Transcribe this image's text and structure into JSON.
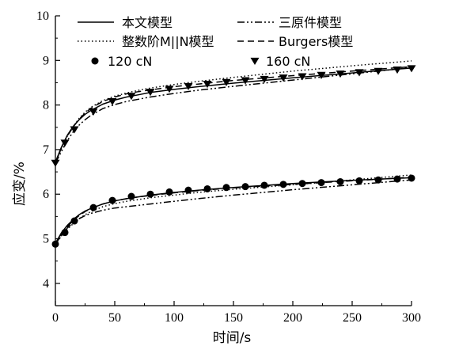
{
  "chart_data": {
    "type": "line",
    "xlabel": "时间/s",
    "ylabel": "应变/%",
    "xlim": [
      0,
      300
    ],
    "ylim": [
      3.5,
      10
    ],
    "xticks": [
      0,
      50,
      100,
      150,
      200,
      250,
      300
    ],
    "yticks": [
      4,
      5,
      6,
      7,
      8,
      9,
      10
    ],
    "grid": false,
    "legend_position": "top",
    "legend": {
      "lines": [
        {
          "label": "本文模型",
          "style": "solid"
        },
        {
          "label": "三原件模型",
          "style": "dashdotdot"
        },
        {
          "label": "整数阶M||N模型",
          "style": "dotted"
        },
        {
          "label": "Burgers模型",
          "style": "dashed"
        }
      ],
      "markers": [
        {
          "label": "120 cN",
          "marker": "circle"
        },
        {
          "label": "160 cN",
          "marker": "triangle-down"
        }
      ]
    },
    "groups": [
      {
        "name": "120 cN",
        "marker": "circle",
        "points": {
          "x": [
            0,
            8,
            16,
            32,
            48,
            64,
            80,
            96,
            112,
            128,
            144,
            160,
            176,
            192,
            208,
            224,
            240,
            256,
            272,
            288,
            300
          ],
          "y": [
            4.88,
            5.14,
            5.4,
            5.7,
            5.86,
            5.95,
            6.0,
            6.05,
            6.09,
            6.12,
            6.15,
            6.17,
            6.2,
            6.22,
            6.24,
            6.26,
            6.28,
            6.3,
            6.32,
            6.34,
            6.36
          ]
        },
        "series": [
          {
            "model": "本文模型",
            "x": [
              0,
              5,
              10,
              15,
              20,
              25,
              30,
              40,
              50,
              60,
              70,
              80,
              100,
              120,
              150,
              200,
              250,
              300
            ],
            "y": [
              4.9,
              5.13,
              5.3,
              5.43,
              5.54,
              5.62,
              5.68,
              5.78,
              5.85,
              5.9,
              5.94,
              5.98,
              6.04,
              6.09,
              6.15,
              6.24,
              6.31,
              6.37
            ]
          },
          {
            "model": "三原件模型",
            "x": [
              0,
              5,
              10,
              15,
              20,
              25,
              30,
              40,
              50,
              60,
              70,
              80,
              100,
              120,
              150,
              200,
              250,
              300
            ],
            "y": [
              4.88,
              5.08,
              5.24,
              5.36,
              5.45,
              5.52,
              5.57,
              5.64,
              5.69,
              5.72,
              5.75,
              5.78,
              5.84,
              5.9,
              5.98,
              6.1,
              6.21,
              6.32
            ]
          },
          {
            "model": "整数阶M||N模型",
            "x": [
              0,
              5,
              10,
              15,
              20,
              25,
              30,
              40,
              50,
              60,
              70,
              80,
              100,
              120,
              150,
              200,
              250,
              300
            ],
            "y": [
              4.88,
              5.06,
              5.21,
              5.34,
              5.45,
              5.54,
              5.61,
              5.72,
              5.79,
              5.84,
              5.88,
              5.92,
              5.98,
              6.04,
              6.11,
              6.21,
              6.32,
              6.43
            ]
          },
          {
            "model": "Burgers模型",
            "x": [
              0,
              5,
              10,
              15,
              20,
              25,
              30,
              40,
              50,
              60,
              70,
              80,
              100,
              120,
              150,
              200,
              250,
              300
            ],
            "y": [
              4.88,
              5.1,
              5.27,
              5.41,
              5.52,
              5.61,
              5.68,
              5.78,
              5.85,
              5.9,
              5.94,
              5.97,
              6.03,
              6.08,
              6.14,
              6.22,
              6.3,
              6.38
            ]
          }
        ]
      },
      {
        "name": "160 cN",
        "marker": "triangle-down",
        "points": {
          "x": [
            0,
            8,
            16,
            32,
            48,
            64,
            80,
            96,
            112,
            128,
            144,
            160,
            176,
            192,
            208,
            224,
            240,
            256,
            272,
            288,
            300
          ],
          "y": [
            6.7,
            7.15,
            7.45,
            7.85,
            8.08,
            8.2,
            8.29,
            8.36,
            8.42,
            8.47,
            8.51,
            8.55,
            8.58,
            8.61,
            8.64,
            8.67,
            8.7,
            8.73,
            8.76,
            8.79,
            8.82
          ]
        },
        "series": [
          {
            "model": "本文模型",
            "x": [
              0,
              5,
              10,
              15,
              20,
              25,
              30,
              40,
              50,
              60,
              70,
              80,
              100,
              120,
              150,
              200,
              250,
              300
            ],
            "y": [
              6.72,
              7.05,
              7.32,
              7.52,
              7.67,
              7.79,
              7.88,
              8.02,
              8.11,
              8.18,
              8.23,
              8.28,
              8.35,
              8.41,
              8.49,
              8.61,
              8.72,
              8.83
            ]
          },
          {
            "model": "三原件模型",
            "x": [
              0,
              5,
              10,
              15,
              20,
              25,
              30,
              40,
              50,
              60,
              70,
              80,
              100,
              120,
              150,
              200,
              250,
              300
            ],
            "y": [
              6.7,
              6.95,
              7.2,
              7.4,
              7.55,
              7.67,
              7.77,
              7.92,
              8.01,
              8.08,
              8.13,
              8.18,
              8.26,
              8.33,
              8.42,
              8.56,
              8.7,
              8.84
            ]
          },
          {
            "model": "整数阶M||N模型",
            "x": [
              0,
              5,
              10,
              15,
              20,
              25,
              30,
              40,
              50,
              60,
              70,
              80,
              100,
              120,
              150,
              200,
              250,
              300
            ],
            "y": [
              6.7,
              7.02,
              7.3,
              7.52,
              7.7,
              7.84,
              7.95,
              8.1,
              8.2,
              8.27,
              8.33,
              8.38,
              8.46,
              8.53,
              8.62,
              8.76,
              8.88,
              8.99
            ]
          },
          {
            "model": "Burgers模型",
            "x": [
              0,
              5,
              10,
              15,
              20,
              25,
              30,
              40,
              50,
              60,
              70,
              80,
              100,
              120,
              150,
              200,
              250,
              300
            ],
            "y": [
              6.7,
              7.03,
              7.3,
              7.51,
              7.68,
              7.82,
              7.93,
              8.08,
              8.18,
              8.25,
              8.3,
              8.34,
              8.41,
              8.47,
              8.55,
              8.66,
              8.76,
              8.86
            ]
          }
        ]
      }
    ]
  }
}
